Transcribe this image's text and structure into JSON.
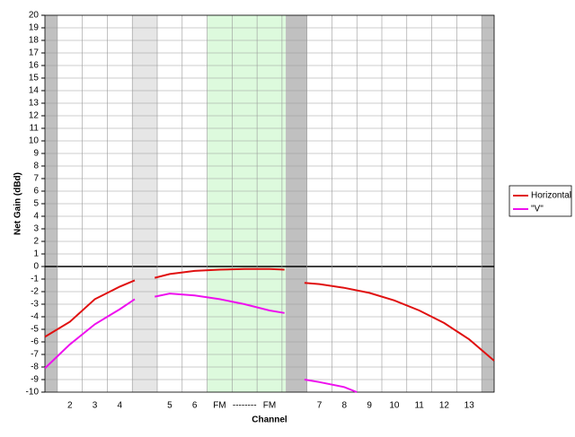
{
  "chart_data": {
    "type": "line",
    "y_label": "Net Gain (dBd)",
    "x_label": "Channel",
    "xlim": [
      0,
      18
    ],
    "ylim": [
      -10,
      20
    ],
    "yticks": [
      -10,
      -9,
      -8,
      -7,
      -6,
      -5,
      -4,
      -3,
      -2,
      -1,
      0,
      1,
      2,
      3,
      4,
      5,
      6,
      7,
      8,
      9,
      10,
      11,
      12,
      13,
      14,
      15,
      16,
      17,
      18,
      19,
      20
    ],
    "xticks": [
      {
        "value": 1,
        "label": "2"
      },
      {
        "value": 2,
        "label": "3"
      },
      {
        "value": 3,
        "label": "4"
      },
      {
        "value": 5,
        "label": "5"
      },
      {
        "value": 6,
        "label": "6"
      },
      {
        "value": 7,
        "label": "FM"
      },
      {
        "value": 8,
        "label": "--------"
      },
      {
        "value": 9,
        "label": "FM"
      },
      {
        "value": 11,
        "label": "7"
      },
      {
        "value": 12,
        "label": "8"
      },
      {
        "value": 13,
        "label": "9"
      },
      {
        "value": 14,
        "label": "10"
      },
      {
        "value": 15,
        "label": "11"
      },
      {
        "value": 16,
        "label": "12"
      },
      {
        "value": 17,
        "label": "13"
      }
    ],
    "x_gridlines": [
      0.5,
      1.5,
      2.5,
      3.5,
      4.5,
      5.5,
      6.5,
      7.5,
      8.5,
      9.5,
      10.5,
      11.5,
      12.5,
      13.5,
      14.5,
      15.5,
      16.5,
      17.5
    ],
    "bands": [
      {
        "from": 0,
        "to": 0.5,
        "color": "#c0c0c0"
      },
      {
        "from": 3.5,
        "to": 4.5,
        "color": "#e6e6e6"
      },
      {
        "from": 6.5,
        "to": 9.65,
        "color": "#ddfadd"
      },
      {
        "from": 9.65,
        "to": 10.5,
        "color": "#c0c0c0"
      },
      {
        "from": 17.5,
        "to": 18,
        "color": "#c0c0c0"
      }
    ],
    "grid": true,
    "legend": "right",
    "series": [
      {
        "name": "Horizontal",
        "color": "#e01010",
        "x": [
          0,
          1,
          2,
          3,
          3.6,
          4,
          4.4,
          5,
          6,
          7,
          8,
          9,
          9.6,
          10,
          10.4,
          11,
          12,
          13,
          14,
          15,
          16,
          17,
          18
        ],
        "values": [
          -5.6,
          -4.4,
          -2.6,
          -1.6,
          -1.1,
          null,
          -0.9,
          -0.6,
          -0.35,
          -0.25,
          -0.2,
          -0.2,
          -0.25,
          null,
          -1.3,
          -1.4,
          -1.7,
          -2.1,
          -2.7,
          -3.5,
          -4.5,
          -5.8,
          -7.5
        ]
      },
      {
        "name": "\"V\"",
        "color": "#ee10ee",
        "x": [
          0,
          1,
          2,
          3,
          3.6,
          4,
          4.4,
          5,
          6,
          7,
          8,
          9,
          9.6,
          10,
          10.4,
          11,
          12,
          12.5
        ],
        "values": [
          -8.1,
          -6.2,
          -4.6,
          -3.4,
          -2.6,
          null,
          -2.4,
          -2.15,
          -2.3,
          -2.6,
          -3.0,
          -3.5,
          -3.7,
          null,
          -9.0,
          -9.2,
          -9.6,
          -10
        ]
      }
    ]
  }
}
